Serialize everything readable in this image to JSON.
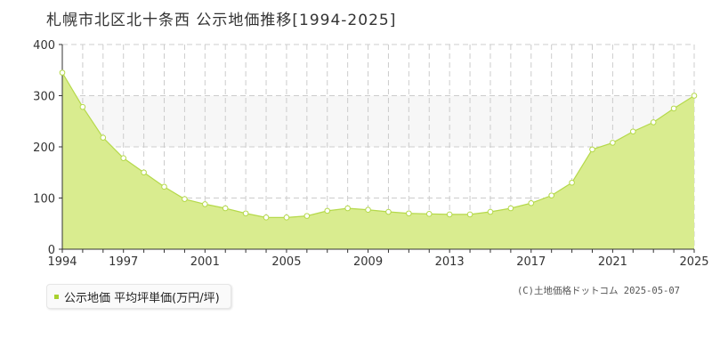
{
  "title": "札幌市北区北十条西 公示地価推移[1994-2025]",
  "legend_label": "公示地価 平均坪単価(万円/坪)",
  "copyright": "(C)土地価格ドットコム 2025-05-07",
  "colors": {
    "fill": "#d9ec8f",
    "line": "#b5d94a",
    "point_fill": "#ffffff",
    "point_stroke": "#b5d94a",
    "band": "#f7f7f7",
    "grid": "#cccccc",
    "axis": "#333333",
    "legend_swatch": "#a8d12e"
  },
  "chart_data": {
    "type": "area",
    "x": [
      1994,
      1995,
      1996,
      1997,
      1998,
      1999,
      2000,
      2001,
      2002,
      2003,
      2004,
      2005,
      2006,
      2007,
      2008,
      2009,
      2010,
      2011,
      2012,
      2013,
      2014,
      2015,
      2016,
      2017,
      2018,
      2019,
      2020,
      2021,
      2022,
      2023,
      2024,
      2025
    ],
    "series": [
      {
        "name": "公示地価 平均坪単価(万円/坪)",
        "values": [
          345,
          278,
          218,
          178,
          150,
          122,
          98,
          88,
          80,
          70,
          62,
          62,
          65,
          75,
          80,
          77,
          73,
          70,
          69,
          68,
          68,
          73,
          80,
          90,
          105,
          130,
          195,
          208,
          230,
          248,
          275,
          300
        ]
      }
    ],
    "x_ticks": [
      1994,
      1997,
      2001,
      2005,
      2009,
      2013,
      2017,
      2021,
      2025
    ],
    "y_ticks": [
      0,
      100,
      200,
      300,
      400
    ],
    "xlim": [
      1994,
      2025
    ],
    "ylim": [
      0,
      400
    ],
    "grid": true,
    "legend_position": "bottom-left"
  }
}
